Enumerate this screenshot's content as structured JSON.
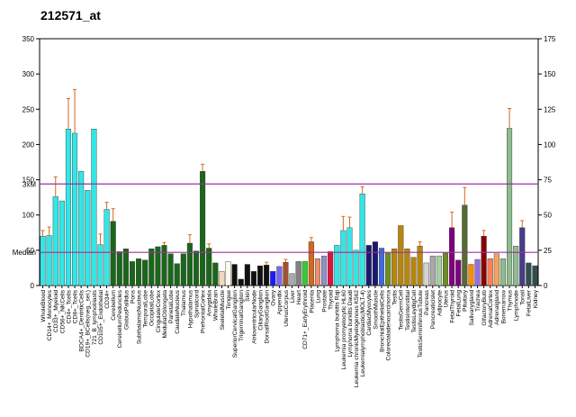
{
  "chart_data": {
    "type": "bar",
    "title": "212571_at",
    "categories": [
      "WholeBlood",
      "CD14+_Monocytes",
      "CD33+_Myeloid",
      "CD56+_NKCells",
      "CD4+_Tcells",
      "CD8+_Tcells",
      "BDCA4+_DentriticCells",
      "CD19+_BCells(neg._sel.)",
      "721_B_lymphoblasts",
      "CD105+_Endothelial",
      "CD34+",
      "Cerebellum",
      "CerebellumPeduncles",
      "GlobusPallidus",
      "Pons",
      "SubthalamicNucleus",
      "TemporalLobe",
      "OccipitalLobe",
      "CingulateCortex",
      "MedullaOblongata",
      "ParietalLobe",
      "CaudateNucleus",
      "Thalamus",
      "Hypothalamus",
      "Spinalcord",
      "PrefrontalCortex",
      "Amygdala",
      "WholeBrain",
      "SkeletalMuscle",
      "Tongue",
      "SuperiorCervicalGanglion",
      "TrigeminalGanglion",
      "Skin",
      "AtrioventricularNode",
      "CiliaryGanglion",
      "DorsalRootGanglion",
      "Ovary",
      "Appendix",
      "UterusCorpus",
      "Liver",
      "Heart",
      "CD71+_EarlyErythroid",
      "Placenta",
      "Lung",
      "Prostate",
      "Thyroid",
      "Lymphoma burkitts Raji",
      "Leukemia promyelocytic HL60",
      "Lymphoma burkitts Daudi",
      "Leukemia chronicMyelogenous K562",
      "Leukemialymphoblastic(MOLT-4)",
      "CardiacMyocytes",
      "SmoothMuscle",
      "BronchialEpithelialCells",
      "Colorectaladenocarcinoma",
      "Testis",
      "TestisGermCell",
      "TestisInterstitial",
      "TestisLeydigCell",
      "TestisSeminiferousTubule",
      "Pancreas",
      "PancreaticIslet",
      "Adipocyte",
      "Uterus",
      "FetalThyroid",
      "FetalLung",
      "Pituitary",
      "Salivarygland",
      "Trachea",
      "OlfactoryBulb",
      "AdrenalCortex",
      "Adrenalgland",
      "Bonemarrow",
      "Thymus",
      "Lymphnode",
      "Tonsil",
      "FetalLiver",
      "Kidney"
    ],
    "values": [
      70,
      71,
      126,
      120,
      222,
      216,
      162,
      135,
      222,
      58,
      108,
      91,
      48,
      52,
      34,
      38,
      36,
      52,
      55,
      57,
      45,
      31,
      45,
      60,
      49,
      162,
      53,
      32,
      20,
      34,
      30,
      9,
      30,
      20,
      28,
      29,
      20,
      27,
      33,
      17,
      34,
      34,
      62,
      38,
      42,
      48,
      57,
      78,
      82,
      50,
      130,
      57,
      62,
      53,
      46,
      52,
      85,
      52,
      40,
      56,
      32,
      42,
      42,
      46,
      82,
      36,
      114,
      30,
      37,
      70,
      38,
      45,
      38,
      223,
      56,
      82,
      32,
      28
    ],
    "errors": [
      8,
      12,
      28,
      null,
      43,
      62,
      null,
      null,
      null,
      15,
      10,
      18,
      null,
      null,
      null,
      null,
      null,
      null,
      null,
      4,
      null,
      null,
      null,
      12,
      null,
      10,
      6,
      null,
      null,
      null,
      null,
      null,
      null,
      null,
      null,
      4,
      null,
      null,
      4,
      null,
      null,
      null,
      6,
      null,
      null,
      null,
      null,
      20,
      15,
      null,
      10,
      null,
      null,
      null,
      null,
      null,
      null,
      null,
      null,
      6,
      null,
      null,
      null,
      null,
      22,
      null,
      25,
      null,
      null,
      8,
      null,
      null,
      null,
      28,
      null,
      10,
      null,
      null
    ],
    "colors": [
      "#33e6e6",
      "#33e6e6",
      "#33e6e6",
      "#33e6e6",
      "#33e6e6",
      "#33e6e6",
      "#33e6e6",
      "#33e6e6",
      "#33e6e6",
      "#33e6e6",
      "#33e6e6",
      "#1a661a",
      "#1a661a",
      "#1a661a",
      "#1a661a",
      "#1a661a",
      "#1a661a",
      "#1a661a",
      "#1a661a",
      "#1a661a",
      "#1a661a",
      "#1a661a",
      "#1a661a",
      "#1a661a",
      "#1a661a",
      "#1a661a",
      "#1a661a",
      "#1a661a",
      "#f0d8c0",
      "#fff8e8",
      "#111111",
      "#111111",
      "#111111",
      "#111111",
      "#111111",
      "#111111",
      "#1a1aff",
      "#7b68ee",
      "#a0522d",
      "#a9a9a9",
      "#808080",
      "#33cc33",
      "#d2691e",
      "#e8906a",
      "#9090c8",
      "#dc143c",
      "#33e6e6",
      "#33e6e6",
      "#33e6e6",
      "#33e6e6",
      "#33e6e6",
      "#191970",
      "#191970",
      "#4169e1",
      "#6b8e23",
      "#b8860b",
      "#b8860b",
      "#b8860b",
      "#b8860b",
      "#b8860b",
      "#d3d3d3",
      "#a9a9a9",
      "#a8d0a8",
      "#6b8e23",
      "#800080",
      "#800080",
      "#556b2f",
      "#ff8c00",
      "#9370db",
      "#8b0000",
      "#ff7f50",
      "#f4a460",
      "#8fbc8f",
      "#8fbc8f",
      "#8fbc8f",
      "#483d8b",
      "#2f4f4f",
      "#2f4f4f"
    ],
    "error_color": "#d2691e",
    "ylim": [
      0,
      350
    ],
    "yticks": [
      0,
      50,
      100,
      150,
      200,
      250,
      300,
      350
    ],
    "y2lim": [
      0,
      175
    ],
    "y2ticks": [
      0,
      25,
      50,
      75,
      100,
      125,
      150,
      175
    ],
    "reference_lines": [
      {
        "label": "3xM",
        "value": 144
      },
      {
        "label": "Median",
        "value": 47
      }
    ],
    "reference_color": "#993399"
  }
}
